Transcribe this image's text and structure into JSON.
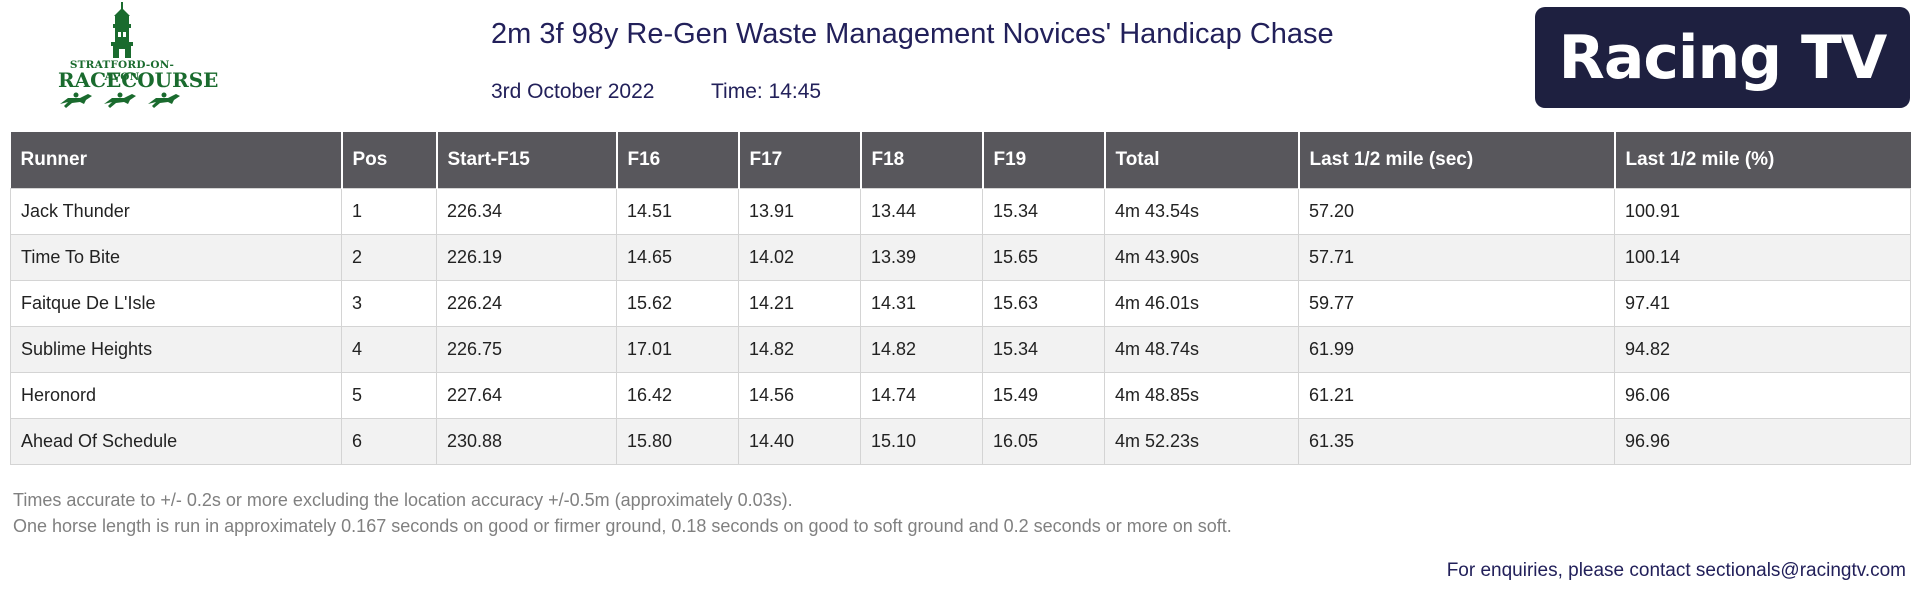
{
  "logo": {
    "line1": "STRATFORD-ON-AVON",
    "line2": "RACECOURSE",
    "brand_color": "#1a6b2e"
  },
  "header": {
    "title": "2m 3f 98y Re-Gen Waste Management Novices' Handicap Chase",
    "date": "3rd October 2022",
    "time": "Time: 14:45"
  },
  "brand": {
    "text": "Racing TV",
    "background": "#1e2040"
  },
  "table": {
    "columns": [
      "Runner",
      "Pos",
      "Start-F15",
      "F16",
      "F17",
      "F18",
      "F19",
      "Total",
      "Last 1/2 mile (sec)",
      "Last 1/2 mile (%)"
    ],
    "rows": [
      [
        "Jack Thunder",
        "1",
        "226.34",
        "14.51",
        "13.91",
        "13.44",
        "15.34",
        "4m 43.54s",
        "57.20",
        "100.91"
      ],
      [
        "Time To Bite",
        "2",
        "226.19",
        "14.65",
        "14.02",
        "13.39",
        "15.65",
        "4m 43.90s",
        "57.71",
        "100.14"
      ],
      [
        "Faitque De L'Isle",
        "3",
        "226.24",
        "15.62",
        "14.21",
        "14.31",
        "15.63",
        "4m 46.01s",
        "59.77",
        "97.41"
      ],
      [
        "Sublime Heights",
        "4",
        "226.75",
        "17.01",
        "14.82",
        "14.82",
        "15.34",
        "4m 48.74s",
        "61.99",
        "94.82"
      ],
      [
        "Heronord",
        "5",
        "227.64",
        "16.42",
        "14.56",
        "14.74",
        "15.49",
        "4m 48.85s",
        "61.21",
        "96.06"
      ],
      [
        "Ahead Of Schedule",
        "6",
        "230.88",
        "15.80",
        "14.40",
        "15.10",
        "16.05",
        "4m 52.23s",
        "61.35",
        "96.96"
      ]
    ]
  },
  "notes": {
    "line1": "Times accurate to +/- 0.2s or more excluding the location accuracy +/-0.5m (approximately 0.03s).",
    "line2": "One horse length is run in approximately 0.167 seconds on good or firmer ground, 0.18 seconds on good to soft ground and 0.2 seconds or more on soft."
  },
  "contact": "For enquiries, please contact sectionals@racingtv.com"
}
